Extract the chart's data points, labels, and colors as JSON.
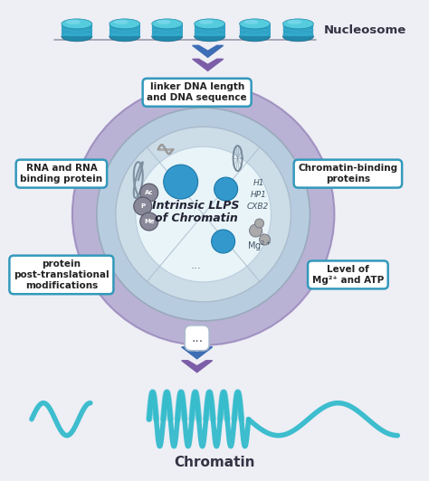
{
  "bg_color": "#eeeef5",
  "title_nucleosome": "Nucleosome",
  "title_chromatin": "Chromatin",
  "center_text_line1": "Intrinsic LLPS",
  "center_text_line2": "of Chromatin",
  "box_texts": {
    "top": "linker DNA length\nand DNA sequence",
    "left_top": "RNA and RNA\nbinding protein",
    "left_bottom": "protein\npost-translational\nmodifications",
    "right_top": "Chromatin-binding\nproteins",
    "right_bottom": "Level of\nMg²⁺ and ATP"
  },
  "ptm_labels": [
    "Ac",
    "P",
    "Me"
  ],
  "outer_circle_color": "#b0a8d0",
  "mid_circle_color": "#b8cce0",
  "inner_circle_color": "#ccdde8",
  "white_circle_color": "#ddeef5",
  "blue_dot_color": "#3399cc",
  "ptm_circle_color": "#888899",
  "arrow_teal": "#3d6db5",
  "arrow_purple": "#7b5ea7",
  "teal_color": "#33bbcc",
  "box_border_color": "#3399bb",
  "box_bg_color": "#ffffff",
  "nucleosome_top": "#55ccdd",
  "nucleosome_mid": "#33aacc",
  "nucleosome_bot": "#2288aa",
  "line_color": "#999aaa",
  "label_color": "#333344",
  "dots_color": "#667788"
}
